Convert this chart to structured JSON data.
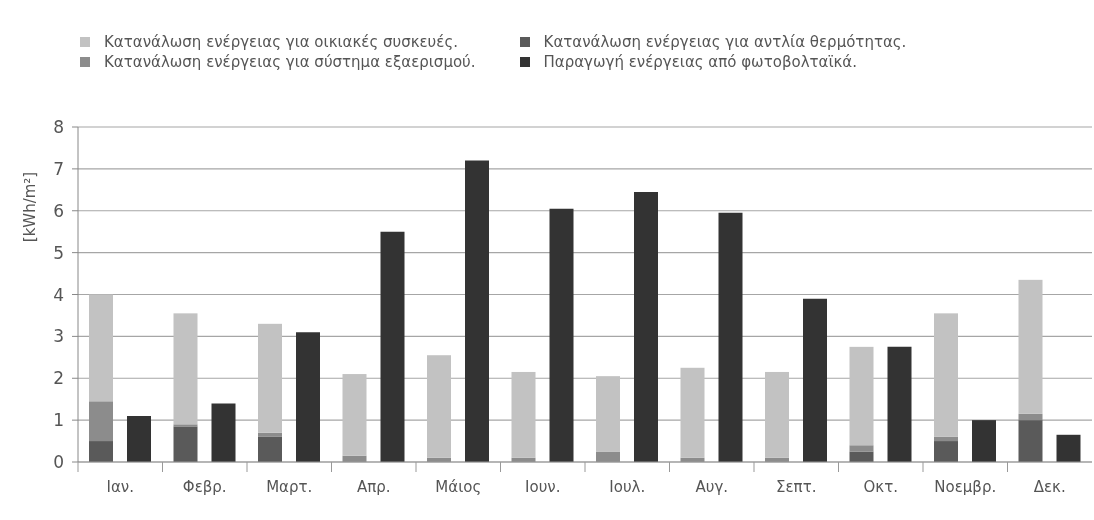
{
  "chart_data": {
    "type": "bar",
    "categories": [
      "Ιαν.",
      "Φεβρ.",
      "Μαρτ.",
      "Απρ.",
      "Μάιος",
      "Ιουν.",
      "Ιουλ.",
      "Αυγ.",
      "Σεπτ.",
      "Οκτ.",
      "Νοεμβρ.",
      "Δεκ."
    ],
    "series": [
      {
        "name": "Κατανάλωση ενέργειας για αντλία θερμότητας.",
        "color": "#5a5a5a",
        "base": [
          0,
          0,
          0,
          null,
          null,
          null,
          null,
          null,
          null,
          0,
          0,
          0
        ],
        "values": [
          0.5,
          0.85,
          0.6,
          null,
          null,
          null,
          null,
          null,
          null,
          0.25,
          0.5,
          1.0
        ]
      },
      {
        "name": "Κατανάλωση ενέργειας για σύστημα εξαερισμού.",
        "color": "#8c8c8c",
        "base": [
          0.5,
          0.85,
          0.6,
          0,
          0,
          0,
          0,
          0,
          0,
          0.25,
          0.5,
          1.0
        ],
        "values": [
          0.95,
          0.05,
          0.1,
          0.15,
          0.1,
          0.1,
          0.25,
          0.1,
          0.1,
          0.15,
          0.1,
          0.15
        ]
      },
      {
        "name": "Κατανάλωση ενέργειας για οικιακές συσκευές.",
        "color": "#c2c2c2",
        "base": [
          1.45,
          0.9,
          0.7,
          0.15,
          0.1,
          0.1,
          0.25,
          0.1,
          0.1,
          0.4,
          0.6,
          1.15
        ],
        "values": [
          2.55,
          2.65,
          2.6,
          1.95,
          2.45,
          2.05,
          1.8,
          2.15,
          2.05,
          2.35,
          2.95,
          3.2
        ]
      },
      {
        "name": "Παραγωγή ενέργειας από φωτοβολταϊκά.",
        "color": "#333333",
        "values": [
          1.1,
          1.4,
          3.1,
          5.5,
          7.2,
          6.05,
          6.45,
          5.95,
          3.9,
          2.75,
          1.0,
          0.65
        ]
      }
    ],
    "ylabel": "[kWh/m²]",
    "ylim": [
      0,
      8
    ],
    "yticks": [
      0,
      1,
      2,
      3,
      4,
      5,
      6,
      7,
      8
    ],
    "grid": "y",
    "legend": "top left"
  }
}
